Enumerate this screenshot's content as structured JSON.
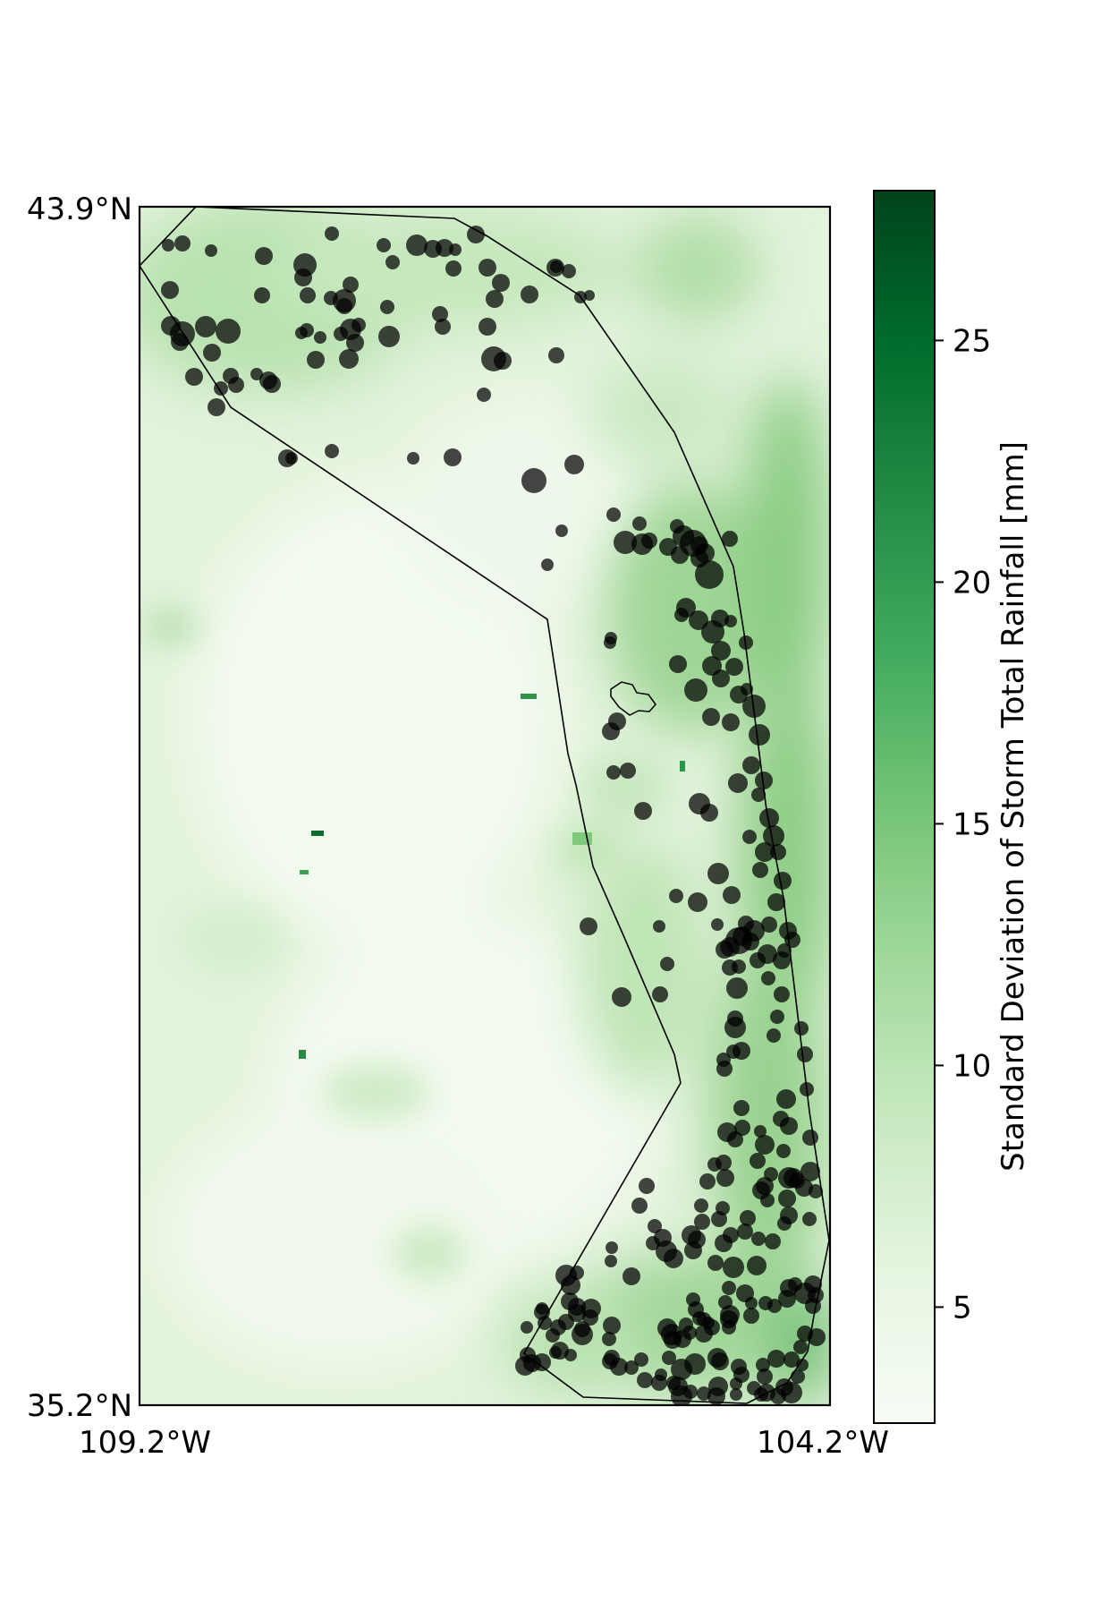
{
  "map": {
    "lat_top_label": "43.9°N",
    "lat_bottom_label": "35.2°N",
    "lon_left_label": "109.2°W",
    "lon_right_label": "104.2°W",
    "extent": {
      "lon_min": -109.2,
      "lon_max": -104.2,
      "lat_min": 35.2,
      "lat_max": 43.9
    },
    "field_colormap": "Greens",
    "field_color_low": "#f7fcf5",
    "field_color_high": "#00441b",
    "marker_color": "#000000",
    "marker_opacity": 0.72,
    "boundary_color": "#000000"
  },
  "colorbar": {
    "label": "Standard Deviation of Storm Total Rainfall [mm]",
    "ticks": [
      "5",
      "10",
      "15",
      "20",
      "25"
    ],
    "tick_values": [
      5,
      10,
      15,
      20,
      25
    ],
    "vmin": 2.6,
    "vmax": 28.1
  }
}
